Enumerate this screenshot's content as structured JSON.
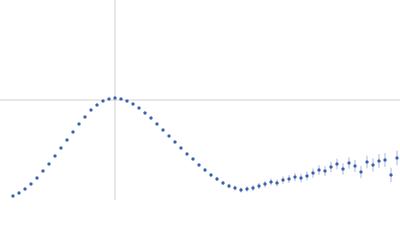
{
  "chart_data": {
    "type": "scatter",
    "xlim": [
      0,
      400
    ],
    "ylim": [
      0,
      200
    ],
    "crosshair": {
      "x": 115,
      "y": 100
    },
    "color": "#3a5fad",
    "x": [
      13,
      19,
      25,
      31,
      37,
      43,
      49,
      55,
      61,
      67,
      73,
      79,
      85,
      91,
      97,
      103,
      109,
      115,
      121,
      127,
      133,
      139,
      145,
      151,
      157,
      163,
      169,
      175,
      181,
      187,
      193,
      199,
      205,
      211,
      217,
      223,
      229,
      235,
      241,
      247,
      253,
      259,
      265,
      271,
      277,
      283,
      289,
      295,
      301,
      307,
      313,
      319,
      325,
      331,
      337,
      343,
      349,
      355,
      361,
      367,
      373,
      379,
      385,
      391,
      397
    ],
    "values": [
      4,
      7,
      11,
      16,
      22,
      29,
      36,
      44,
      52,
      60,
      68,
      76,
      83,
      90,
      95,
      99,
      101,
      102,
      101,
      99,
      96,
      92,
      87,
      82,
      76,
      70,
      64,
      58,
      52,
      46,
      41,
      35,
      30,
      25,
      21,
      17,
      14,
      12,
      10,
      11,
      12,
      14,
      16,
      18,
      17,
      20,
      21,
      23,
      22,
      24,
      27,
      30,
      29,
      33,
      36,
      31,
      37,
      34,
      28,
      38,
      35,
      39,
      40,
      25,
      42
    ],
    "errors": [
      0.5,
      0.5,
      0.5,
      0.5,
      0.5,
      0.5,
      0.5,
      0.5,
      0.5,
      0.5,
      0.5,
      0.5,
      0.5,
      0.5,
      0.6,
      0.6,
      0.6,
      0.7,
      0.7,
      0.7,
      0.8,
      0.8,
      0.9,
      0.9,
      1,
      1,
      1.1,
      1.2,
      1.3,
      1.4,
      1.5,
      1.6,
      1.7,
      1.8,
      2,
      2,
      2.2,
      2.4,
      2.5,
      2.6,
      2.8,
      3,
      3.2,
      3.4,
      3.5,
      3.7,
      3.9,
      4,
      4.2,
      4.4,
      4.6,
      4.8,
      5,
      5.2,
      5.4,
      5.6,
      5.8,
      6,
      6.2,
      6.4,
      6.6,
      6.8,
      7,
      7.2,
      7.4
    ]
  }
}
